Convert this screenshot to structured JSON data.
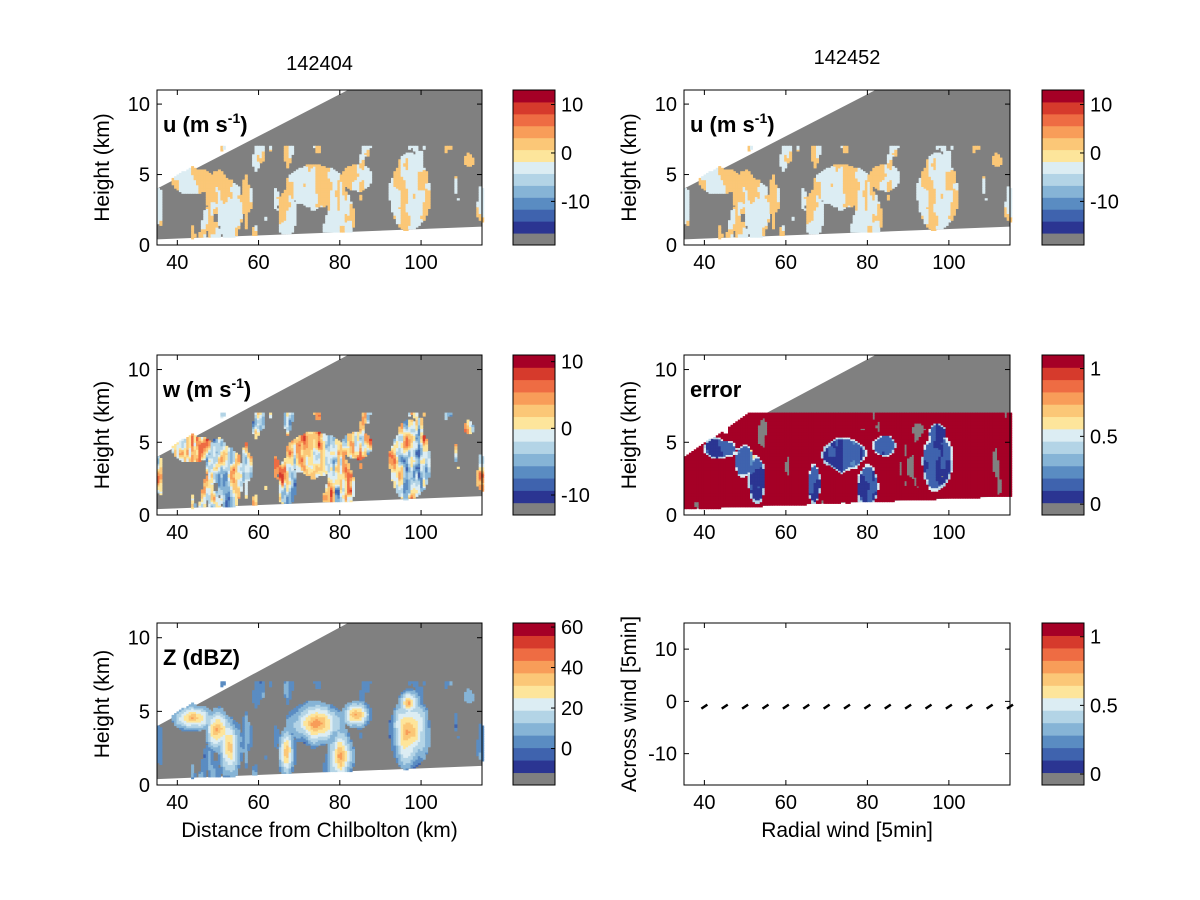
{
  "colors": {
    "missing": "#808080",
    "cmap": [
      "#2b3592",
      "#3f63ae",
      "#5a8cc2",
      "#86b4d6",
      "#b3d4e6",
      "#dcedf3",
      "#fde59b",
      "#fbc777",
      "#f89d59",
      "#ee6c43",
      "#d63a2c",
      "#a50026"
    ]
  },
  "chart_data": [
    {
      "type": "heatmap",
      "title": "142404",
      "panel_label": "u (m s",
      "panel_label_sup": "-1",
      "panel_label_end": ")",
      "xlabel": "",
      "ylabel": "Height (km)",
      "xlim": [
        35,
        115
      ],
      "ylim": [
        0,
        11
      ],
      "xticks": [
        "40",
        "60",
        "80",
        "100"
      ],
      "yticks": [
        "0",
        "5",
        "10"
      ],
      "colorbar": {
        "range": [
          -19,
          13
        ],
        "ticks": [
          {
            "v": 10,
            "label": "10"
          },
          {
            "v": 0,
            "label": "0"
          },
          {
            "v": -10,
            "label": "-10"
          }
        ]
      },
      "field": "u"
    },
    {
      "type": "heatmap",
      "title": "142452",
      "panel_label": "u (m s",
      "panel_label_sup": "-1",
      "panel_label_end": ")",
      "xlabel": "",
      "ylabel": "Height (km)",
      "xlim": [
        35,
        115
      ],
      "ylim": [
        0,
        11
      ],
      "xticks": [
        "40",
        "60",
        "80",
        "100"
      ],
      "yticks": [
        "0",
        "5",
        "10"
      ],
      "colorbar": {
        "range": [
          -19,
          13
        ],
        "ticks": [
          {
            "v": 10,
            "label": "10"
          },
          {
            "v": 0,
            "label": "0"
          },
          {
            "v": -10,
            "label": "-10"
          }
        ]
      },
      "field": "u"
    },
    {
      "type": "heatmap",
      "title": "",
      "panel_label": "w (m s",
      "panel_label_sup": "-1",
      "panel_label_end": ")",
      "xlabel": "",
      "ylabel": "Height (km)",
      "xlim": [
        35,
        115
      ],
      "ylim": [
        0,
        11
      ],
      "xticks": [
        "40",
        "60",
        "80",
        "100"
      ],
      "yticks": [
        "0",
        "5",
        "10"
      ],
      "colorbar": {
        "range": [
          -13,
          11
        ],
        "ticks": [
          {
            "v": 10,
            "label": "10"
          },
          {
            "v": 0,
            "label": "0"
          },
          {
            "v": -10,
            "label": "-10"
          }
        ]
      },
      "field": "w"
    },
    {
      "type": "heatmap",
      "title": "",
      "panel_label": "error",
      "panel_label_sup": "",
      "panel_label_end": "",
      "xlabel": "",
      "ylabel": "Height (km)",
      "xlim": [
        35,
        115
      ],
      "ylim": [
        0,
        11
      ],
      "xticks": [
        "40",
        "60",
        "80",
        "100"
      ],
      "yticks": [
        "0",
        "5",
        "10"
      ],
      "colorbar": {
        "range": [
          -0.08,
          1.1
        ],
        "ticks": [
          {
            "v": 1,
            "label": "1"
          },
          {
            "v": 0.5,
            "label": "0.5"
          },
          {
            "v": 0,
            "label": "0"
          }
        ]
      },
      "field": "error"
    },
    {
      "type": "heatmap",
      "title": "",
      "panel_label": "Z (dBZ)",
      "panel_label_sup": "",
      "panel_label_end": "",
      "xlabel": "Distance from Chilbolton (km)",
      "ylabel": "Height (km)",
      "xlim": [
        35,
        115
      ],
      "ylim": [
        0,
        11
      ],
      "xticks": [
        "40",
        "60",
        "80",
        "100"
      ],
      "yticks": [
        "0",
        "5",
        "10"
      ],
      "colorbar": {
        "range": [
          -18,
          62
        ],
        "ticks": [
          {
            "v": 60,
            "label": "60"
          },
          {
            "v": 40,
            "label": "40"
          },
          {
            "v": 20,
            "label": "20"
          },
          {
            "v": 0,
            "label": "0"
          }
        ]
      },
      "field": "Z"
    },
    {
      "type": "scatter",
      "title": "",
      "panel_label": "",
      "xlabel": "Radial wind [5min]",
      "ylabel": "Across wind [5min]",
      "xlim": [
        35,
        115
      ],
      "ylim": [
        -16,
        15
      ],
      "xticks": [
        "40",
        "60",
        "80",
        "100"
      ],
      "yticks": [
        "-10",
        "0",
        "10"
      ],
      "colorbar": {
        "range": [
          -0.08,
          1.1
        ],
        "ticks": [
          {
            "v": 1,
            "label": "1"
          },
          {
            "v": 0.5,
            "label": "0.5"
          },
          {
            "v": 0,
            "label": "0"
          }
        ]
      },
      "x": [
        40,
        45,
        50,
        55,
        60,
        65,
        70,
        75,
        80,
        85,
        90,
        95,
        100,
        105,
        110,
        115
      ],
      "y": [
        -1,
        -1,
        -1,
        -1,
        -1,
        -1,
        -1,
        -1,
        -1,
        -1,
        -1,
        -1,
        -1,
        -1,
        -1,
        -1
      ]
    }
  ]
}
